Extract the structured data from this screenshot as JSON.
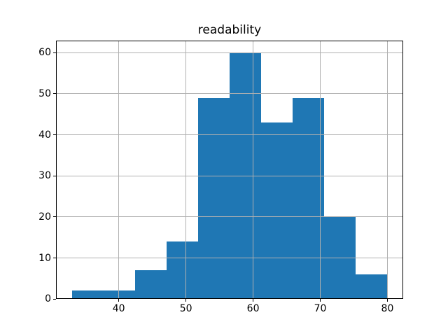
{
  "chart_data": {
    "type": "histogram",
    "title": "readability",
    "xlabel": "",
    "ylabel": "",
    "bin_edges": [
      33.0,
      37.7,
      42.4,
      47.1,
      51.8,
      56.5,
      61.2,
      65.9,
      70.6,
      75.3,
      80.0
    ],
    "counts": [
      2,
      2,
      7,
      14,
      49,
      60,
      43,
      49,
      20,
      6
    ],
    "x_ticks": [
      40,
      50,
      60,
      70,
      80
    ],
    "y_ticks": [
      0,
      10,
      20,
      30,
      40,
      50,
      60
    ],
    "xlim": [
      30.65,
      82.35
    ],
    "ylim": [
      0,
      63
    ],
    "grid": true,
    "grid_above_bars": true,
    "legend": "none",
    "colors": {
      "bar": "#1f77b4",
      "grid": "#b0b0b0",
      "axis": "#000000",
      "background": "#ffffff",
      "text": "#000000"
    }
  }
}
